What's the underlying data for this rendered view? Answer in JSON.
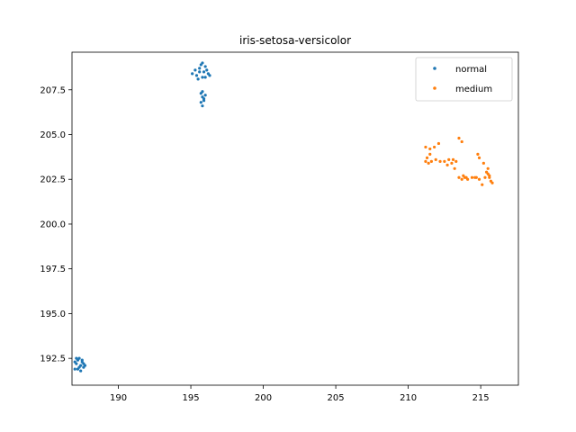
{
  "chart_data": {
    "type": "scatter",
    "title": "iris-setosa-versicolor",
    "xlabel": "",
    "ylabel": "",
    "xlim": [
      186.8,
      217.6
    ],
    "ylim": [
      191.0,
      209.6
    ],
    "xticks": [
      190,
      195,
      200,
      205,
      210,
      215
    ],
    "yticks": [
      192.5,
      195.0,
      197.5,
      200.0,
      202.5,
      205.0,
      207.5
    ],
    "grid": false,
    "legend_position": "top-right",
    "series": [
      {
        "name": "normal",
        "color": "#1f77b4",
        "points": [
          [
            187.0,
            192.3
          ],
          [
            187.2,
            192.4
          ],
          [
            187.3,
            192.5
          ],
          [
            187.5,
            192.4
          ],
          [
            187.1,
            192.2
          ],
          [
            187.4,
            192.1
          ],
          [
            187.6,
            192.2
          ],
          [
            187.2,
            191.9
          ],
          [
            187.4,
            191.8
          ],
          [
            187.6,
            192.0
          ],
          [
            187.0,
            191.9
          ],
          [
            187.3,
            192.0
          ],
          [
            187.5,
            192.3
          ],
          [
            187.7,
            192.1
          ],
          [
            187.1,
            192.5
          ],
          [
            195.1,
            208.4
          ],
          [
            195.3,
            208.6
          ],
          [
            195.4,
            208.3
          ],
          [
            195.6,
            208.7
          ],
          [
            195.7,
            208.9
          ],
          [
            195.8,
            209.0
          ],
          [
            195.9,
            208.5
          ],
          [
            196.0,
            208.8
          ],
          [
            196.1,
            208.6
          ],
          [
            196.2,
            208.4
          ],
          [
            195.5,
            208.1
          ],
          [
            195.8,
            208.2
          ],
          [
            196.3,
            208.3
          ],
          [
            196.0,
            208.2
          ],
          [
            195.6,
            208.5
          ],
          [
            195.7,
            207.3
          ],
          [
            195.8,
            207.1
          ],
          [
            195.9,
            207.0
          ],
          [
            195.7,
            206.8
          ],
          [
            195.8,
            206.6
          ],
          [
            195.9,
            206.9
          ],
          [
            196.0,
            207.2
          ],
          [
            195.8,
            207.4
          ]
        ]
      },
      {
        "name": "medium",
        "color": "#ff7f0e",
        "points": [
          [
            211.2,
            204.3
          ],
          [
            211.5,
            204.2
          ],
          [
            211.8,
            204.3
          ],
          [
            212.1,
            204.5
          ],
          [
            211.3,
            203.7
          ],
          [
            211.5,
            203.9
          ],
          [
            211.6,
            203.5
          ],
          [
            211.2,
            203.5
          ],
          [
            211.4,
            203.4
          ],
          [
            211.9,
            203.6
          ],
          [
            212.2,
            203.5
          ],
          [
            212.5,
            203.5
          ],
          [
            212.7,
            203.3
          ],
          [
            212.8,
            203.6
          ],
          [
            213.0,
            203.4
          ],
          [
            213.1,
            203.6
          ],
          [
            213.3,
            203.5
          ],
          [
            213.2,
            203.1
          ],
          [
            213.5,
            204.8
          ],
          [
            213.7,
            204.6
          ],
          [
            213.5,
            202.6
          ],
          [
            213.7,
            202.5
          ],
          [
            213.9,
            202.6
          ],
          [
            214.1,
            202.5
          ],
          [
            213.8,
            202.7
          ],
          [
            214.4,
            202.6
          ],
          [
            214.7,
            202.6
          ],
          [
            214.9,
            202.5
          ],
          [
            215.1,
            202.2
          ],
          [
            215.3,
            202.6
          ],
          [
            215.5,
            202.8
          ],
          [
            215.6,
            202.6
          ],
          [
            215.7,
            202.4
          ],
          [
            215.8,
            202.3
          ],
          [
            215.4,
            202.9
          ],
          [
            214.8,
            203.9
          ],
          [
            214.9,
            203.7
          ],
          [
            215.2,
            203.4
          ],
          [
            215.5,
            203.1
          ],
          [
            215.6,
            202.7
          ],
          [
            214.0,
            202.6
          ],
          [
            214.6,
            202.6
          ]
        ]
      }
    ]
  }
}
